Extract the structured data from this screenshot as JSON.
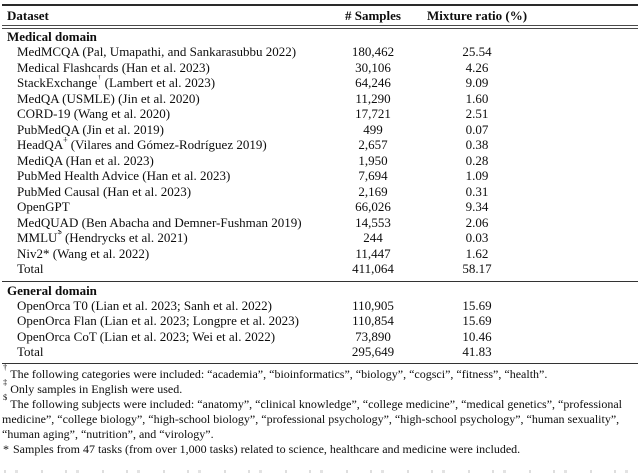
{
  "table": {
    "columns": [
      "Dataset",
      "# Samples",
      "Mixture ratio (%)"
    ],
    "sections": [
      {
        "name": "Medical domain",
        "rows": [
          {
            "pre": "MedMCQA (Pal, Umapathi, and Sankarasubbu 2022)",
            "sup": "",
            "post": "",
            "samples": "180,462",
            "ratio": "25.54"
          },
          {
            "pre": "Medical Flashcards (Han et al. 2023)",
            "sup": "",
            "post": "",
            "samples": "30,106",
            "ratio": "4.26"
          },
          {
            "pre": "StackExchange",
            "sup": "†",
            "post": " (Lambert et al. 2023)",
            "samples": "64,246",
            "ratio": "9.09"
          },
          {
            "pre": "MedQA (USMLE) (Jin et al. 2020)",
            "sup": "",
            "post": "",
            "samples": "11,290",
            "ratio": "1.60"
          },
          {
            "pre": "CORD-19 (Wang et al. 2020)",
            "sup": "",
            "post": "",
            "samples": "17,721",
            "ratio": "2.51"
          },
          {
            "pre": "PubMedQA (Jin et al. 2019)",
            "sup": "",
            "post": "",
            "samples": "499",
            "ratio": "0.07"
          },
          {
            "pre": "HeadQA",
            "sup": "‡",
            "post": " (Vilares and Gómez-Rodríguez 2019)",
            "samples": "2,657",
            "ratio": "0.38"
          },
          {
            "pre": "MediQA (Han et al. 2023)",
            "sup": "",
            "post": "",
            "samples": "1,950",
            "ratio": "0.28"
          },
          {
            "pre": "PubMed Health Advice (Han et al. 2023)",
            "sup": "",
            "post": "",
            "samples": "7,694",
            "ratio": "1.09"
          },
          {
            "pre": "PubMed Causal (Han et al. 2023)",
            "sup": "",
            "post": "",
            "samples": "2,169",
            "ratio": "0.31"
          },
          {
            "pre": "OpenGPT",
            "sup": "",
            "post": "",
            "samples": "66,026",
            "ratio": "9.34"
          },
          {
            "pre": "MedQUAD (Ben Abacha and Demner-Fushman 2019)",
            "sup": "",
            "post": "",
            "samples": "14,553",
            "ratio": "2.06"
          },
          {
            "pre": "MMLU",
            "sup": "$",
            "post": " (Hendrycks et al. 2021)",
            "samples": "244",
            "ratio": "0.03"
          },
          {
            "pre": "Niv2* (Wang et al. 2022)",
            "sup": "",
            "post": "",
            "samples": "11,447",
            "ratio": "1.62"
          },
          {
            "pre": "Total",
            "sup": "",
            "post": "",
            "samples": "411,064",
            "ratio": "58.17"
          }
        ]
      },
      {
        "name": "General domain",
        "rows": [
          {
            "pre": "OpenOrca T0 (Lian et al. 2023; Sanh et al. 2022)",
            "sup": "",
            "post": "",
            "samples": "110,905",
            "ratio": "15.69"
          },
          {
            "pre": "OpenOrca Flan (Lian et al. 2023; Longpre et al. 2023)",
            "sup": "",
            "post": "",
            "samples": "110,854",
            "ratio": "15.69"
          },
          {
            "pre": "OpenOrca CoT (Lian et al. 2023; Wei et al. 2022)",
            "sup": "",
            "post": "",
            "samples": "73,890",
            "ratio": "10.46"
          },
          {
            "pre": "Total",
            "sup": "",
            "post": "",
            "samples": "295,649",
            "ratio": "41.83"
          }
        ]
      }
    ]
  },
  "footnotes": [
    {
      "marker": "†",
      "text": "The following categories were included: “academia”, “bioinformatics”, “biology”, “cogsci”, “fitness”, “health”."
    },
    {
      "marker": "‡",
      "text": "Only samples in English were used."
    },
    {
      "marker": "$",
      "text": "The following subjects were included: “anatomy”, “clinical knowledge”, “college medicine”, “medical genetics”, “professional medicine”, “college biology”, “high-school biology”, “professional psychology”, “high-school psychology”, “human sexuality”, “human aging”, “nutrition”, and “virology”."
    },
    {
      "marker": "*",
      "text": "Samples from 47 tasks (from over 1,000 tasks) related to science, healthcare and medicine were included."
    }
  ]
}
